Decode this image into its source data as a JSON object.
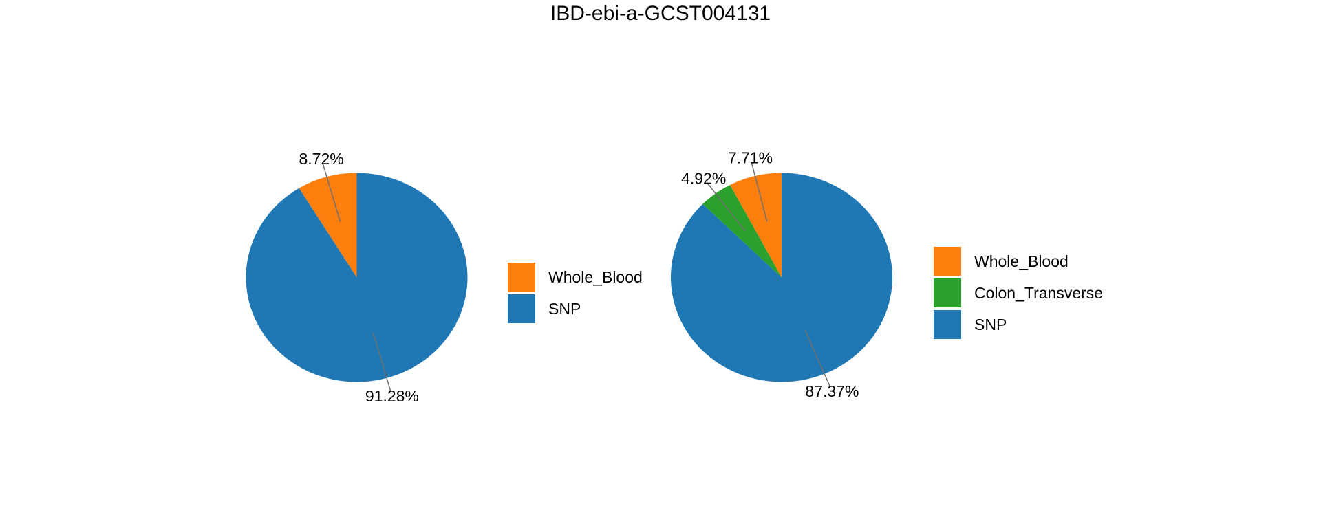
{
  "title": "IBD-ebi-a-GCST004131",
  "colors": {
    "background": "#ffffff",
    "text": "#000000",
    "leader_line": "#707070",
    "whole_blood_orange": "#ff7f0e",
    "colon_transverse_green": "#2ca02c",
    "snp_blue": "#1f77b4"
  },
  "chart_data": [
    {
      "type": "pie",
      "title": "IBD-ebi-a-GCST004131",
      "categories": [
        "Whole_Blood",
        "SNP"
      ],
      "values": [
        8.72,
        91.28
      ],
      "value_labels": [
        "8.72%",
        "91.28%"
      ],
      "slice_colors": [
        "#ff7f0e",
        "#1f77b4"
      ],
      "start_angle_deg": 90,
      "direction": "counterclockwise",
      "legend": {
        "position": "right",
        "entries": [
          {
            "label": "Whole_Blood",
            "color": "#ff7f0e"
          },
          {
            "label": "SNP",
            "color": "#1f77b4"
          }
        ]
      }
    },
    {
      "type": "pie",
      "title": "IBD-ebi-a-GCST004131",
      "categories": [
        "Whole_Blood",
        "Colon_Transverse",
        "SNP"
      ],
      "values": [
        7.71,
        4.92,
        87.37
      ],
      "value_labels": [
        "7.71%",
        "4.92%",
        "87.37%"
      ],
      "slice_colors": [
        "#ff7f0e",
        "#2ca02c",
        "#1f77b4"
      ],
      "start_angle_deg": 90,
      "direction": "counterclockwise",
      "legend": {
        "position": "right",
        "entries": [
          {
            "label": "Whole_Blood",
            "color": "#ff7f0e"
          },
          {
            "label": "Colon_Transverse",
            "color": "#2ca02c"
          },
          {
            "label": "SNP",
            "color": "#1f77b4"
          }
        ]
      }
    }
  ]
}
